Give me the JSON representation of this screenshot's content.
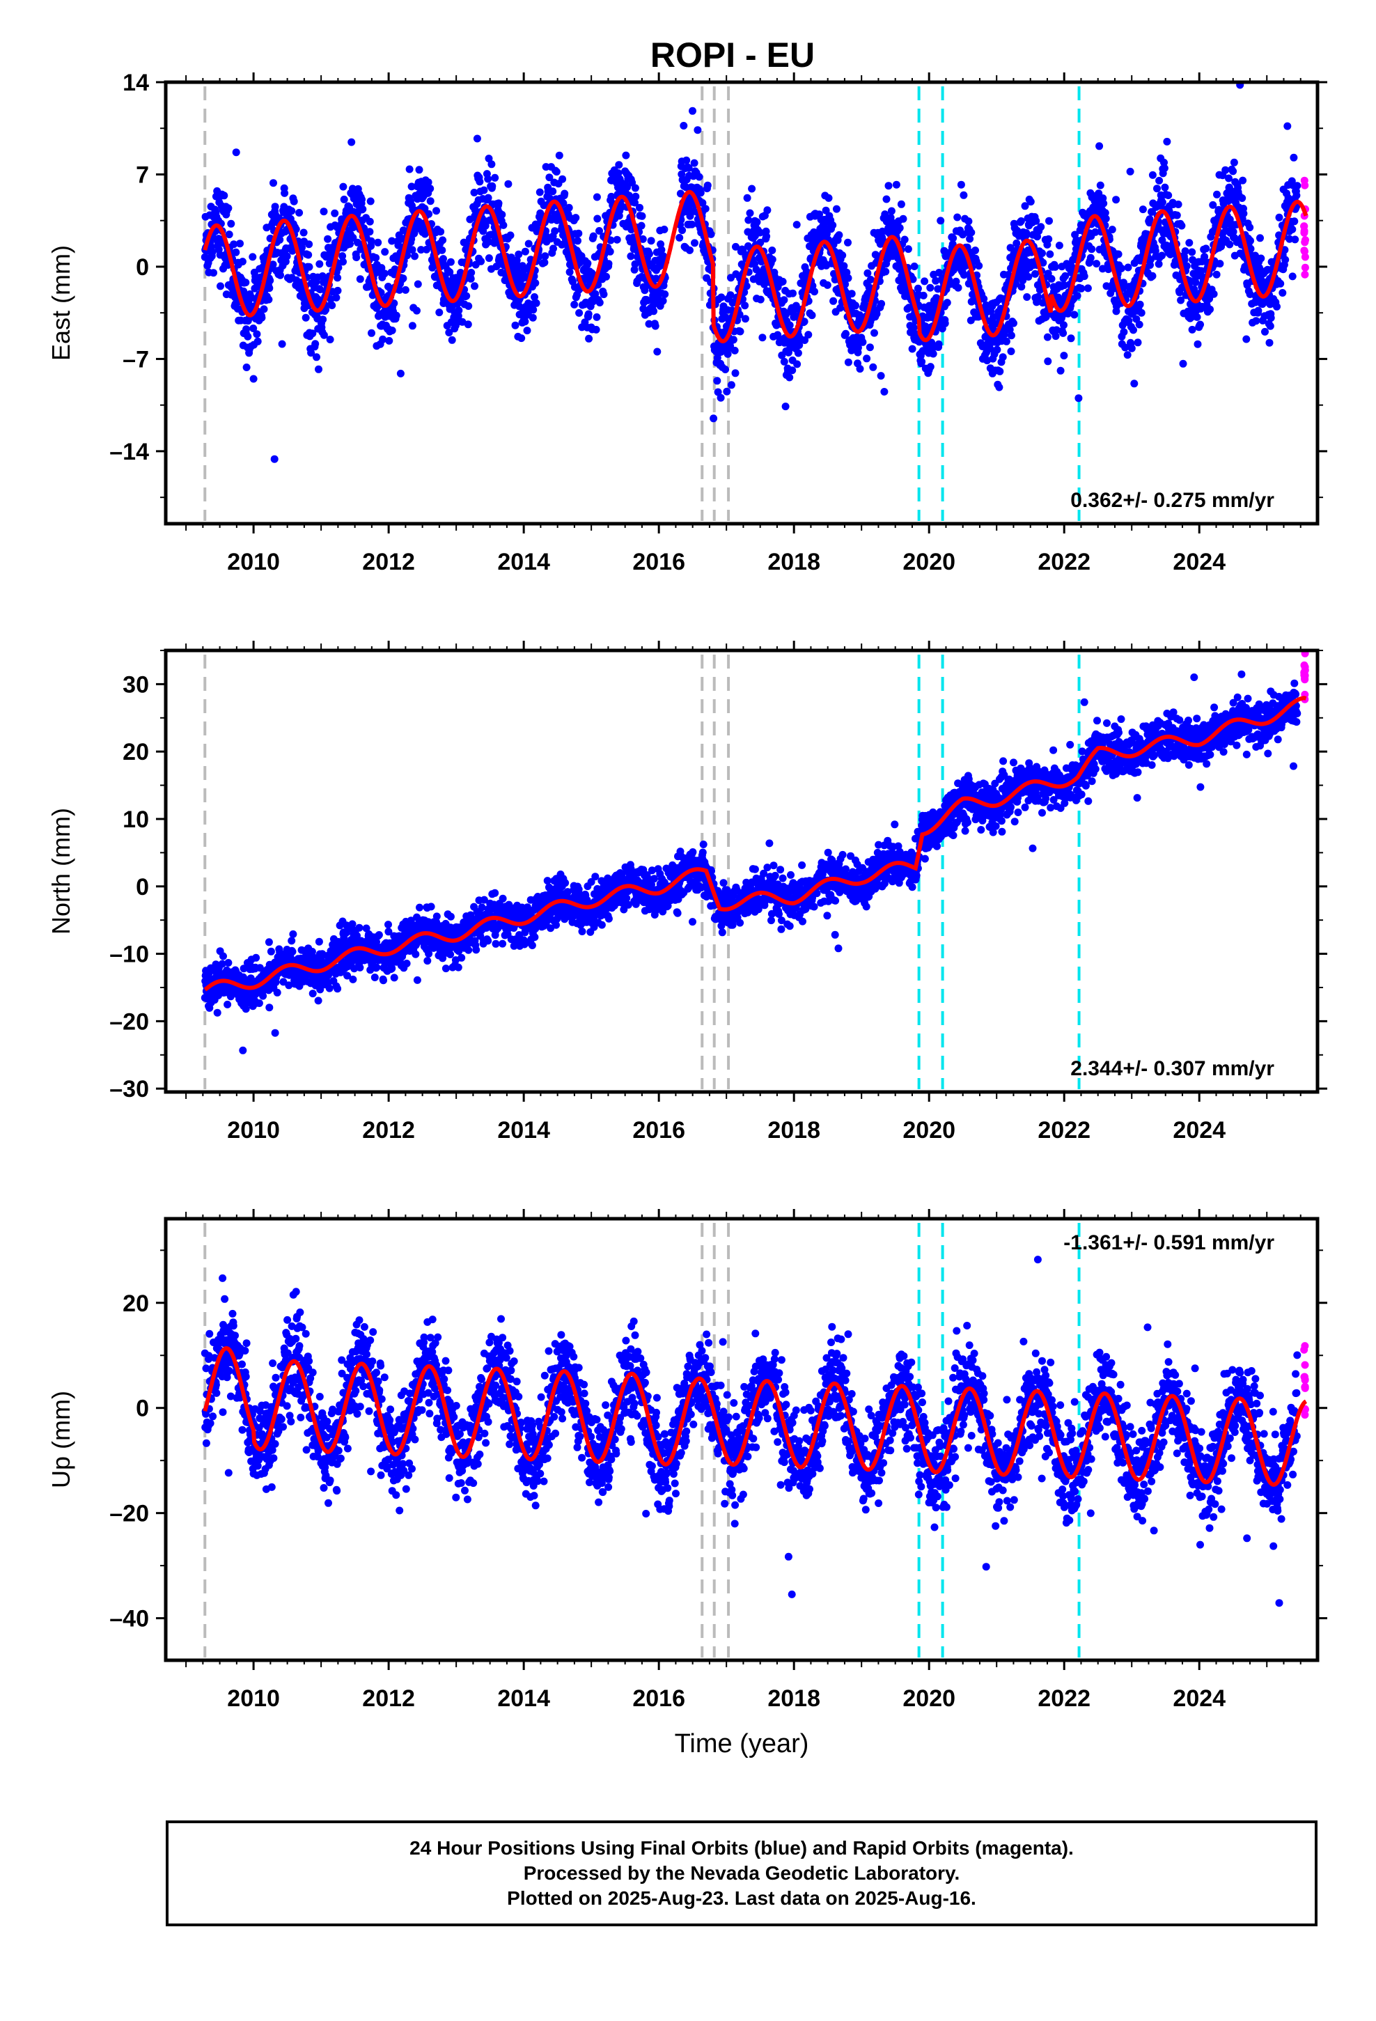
{
  "title": "ROPI - EU",
  "footer": {
    "line1": "24 Hour Positions Using Final Orbits (blue) and Rapid Orbits (magenta).",
    "line2": "Processed by the Nevada Geodetic Laboratory.",
    "line3": "Plotted on 2025-Aug-23. Last data on 2025-Aug-16."
  },
  "colors": {
    "final": "#0000ff",
    "rapid": "#ff00ff",
    "model": "#ff0000",
    "equipment_change": "#bbbbbb",
    "earthquake": "#00e5ee"
  },
  "chart_data": [
    {
      "type": "scatter",
      "ylabel": "East (mm)",
      "xlabel": "",
      "xlim": [
        2008.7,
        2025.75
      ],
      "ylim": [
        -19.5,
        14
      ],
      "yticks": [
        14,
        7,
        0,
        -7,
        -14
      ],
      "xticks": [
        2010,
        2012,
        2014,
        2016,
        2018,
        2020,
        2022,
        2024
      ],
      "rate_label": "0.362+/- 0.275 mm/yr",
      "rate_position": "bottom-right",
      "model": {
        "amplitude": 3.5,
        "phase_peak": 0.45,
        "offset_before_2016_8": 2.0,
        "offset_after_2016_8": -2.5,
        "offset_after_2019_85": -3.5,
        "trend_mm_per_yr": 0.362,
        "scatter_sd": 1.7
      }
    },
    {
      "type": "scatter",
      "ylabel": "North (mm)",
      "xlabel": "",
      "xlim": [
        2008.7,
        2025.75
      ],
      "ylim": [
        -30.5,
        35
      ],
      "yticks": [
        30,
        20,
        10,
        0,
        -10,
        -20,
        -30
      ],
      "xticks": [
        2010,
        2012,
        2014,
        2016,
        2018,
        2020,
        2022,
        2024
      ],
      "rate_label": "2.344+/- 0.307 mm/yr",
      "rate_position": "bottom-right",
      "model": {
        "series_points": [
          [
            2009.3,
            -15.5
          ],
          [
            2010.0,
            -14.0
          ],
          [
            2011.0,
            -11.5
          ],
          [
            2012.0,
            -9.0
          ],
          [
            2013.0,
            -7.0
          ],
          [
            2014.0,
            -4.5
          ],
          [
            2015.0,
            -2.0
          ],
          [
            2016.0,
            0.0
          ],
          [
            2016.7,
            2.0
          ],
          [
            2016.9,
            -2.5
          ],
          [
            2018.0,
            -1.5
          ],
          [
            2019.0,
            1.5
          ],
          [
            2019.8,
            3.0
          ],
          [
            2019.9,
            8.5
          ],
          [
            2020.5,
            12.0
          ],
          [
            2021.0,
            13.0
          ],
          [
            2022.2,
            16.5
          ],
          [
            2022.5,
            19.5
          ],
          [
            2024.0,
            22.0
          ],
          [
            2025.55,
            27.0
          ]
        ],
        "amplitude": 1.0,
        "scatter_sd": 1.6
      }
    },
    {
      "type": "scatter",
      "ylabel": "Up (mm)",
      "xlabel": "Time (year)",
      "xlim": [
        2008.7,
        2025.75
      ],
      "ylim": [
        -48,
        36
      ],
      "yticks": [
        20,
        0,
        -20,
        -40
      ],
      "xticks": [
        2010,
        2012,
        2014,
        2016,
        2018,
        2020,
        2022,
        2024
      ],
      "rate_label": "-1.361+/- 0.591 mm/yr",
      "rate_position": "top-right",
      "model": {
        "amplitude": 8.5,
        "phase_peak": 0.6,
        "offset_2009_3": 3.5,
        "trend_mm_per_yr": -1.361,
        "scatter_sd": 4.2
      }
    }
  ],
  "event_lines": {
    "equipment_changes": [
      2009.28,
      2016.64,
      2016.82,
      2017.03
    ],
    "earthquakes": [
      2019.85,
      2020.2,
      2022.22
    ]
  },
  "rapid_points_after": 2025.45
}
